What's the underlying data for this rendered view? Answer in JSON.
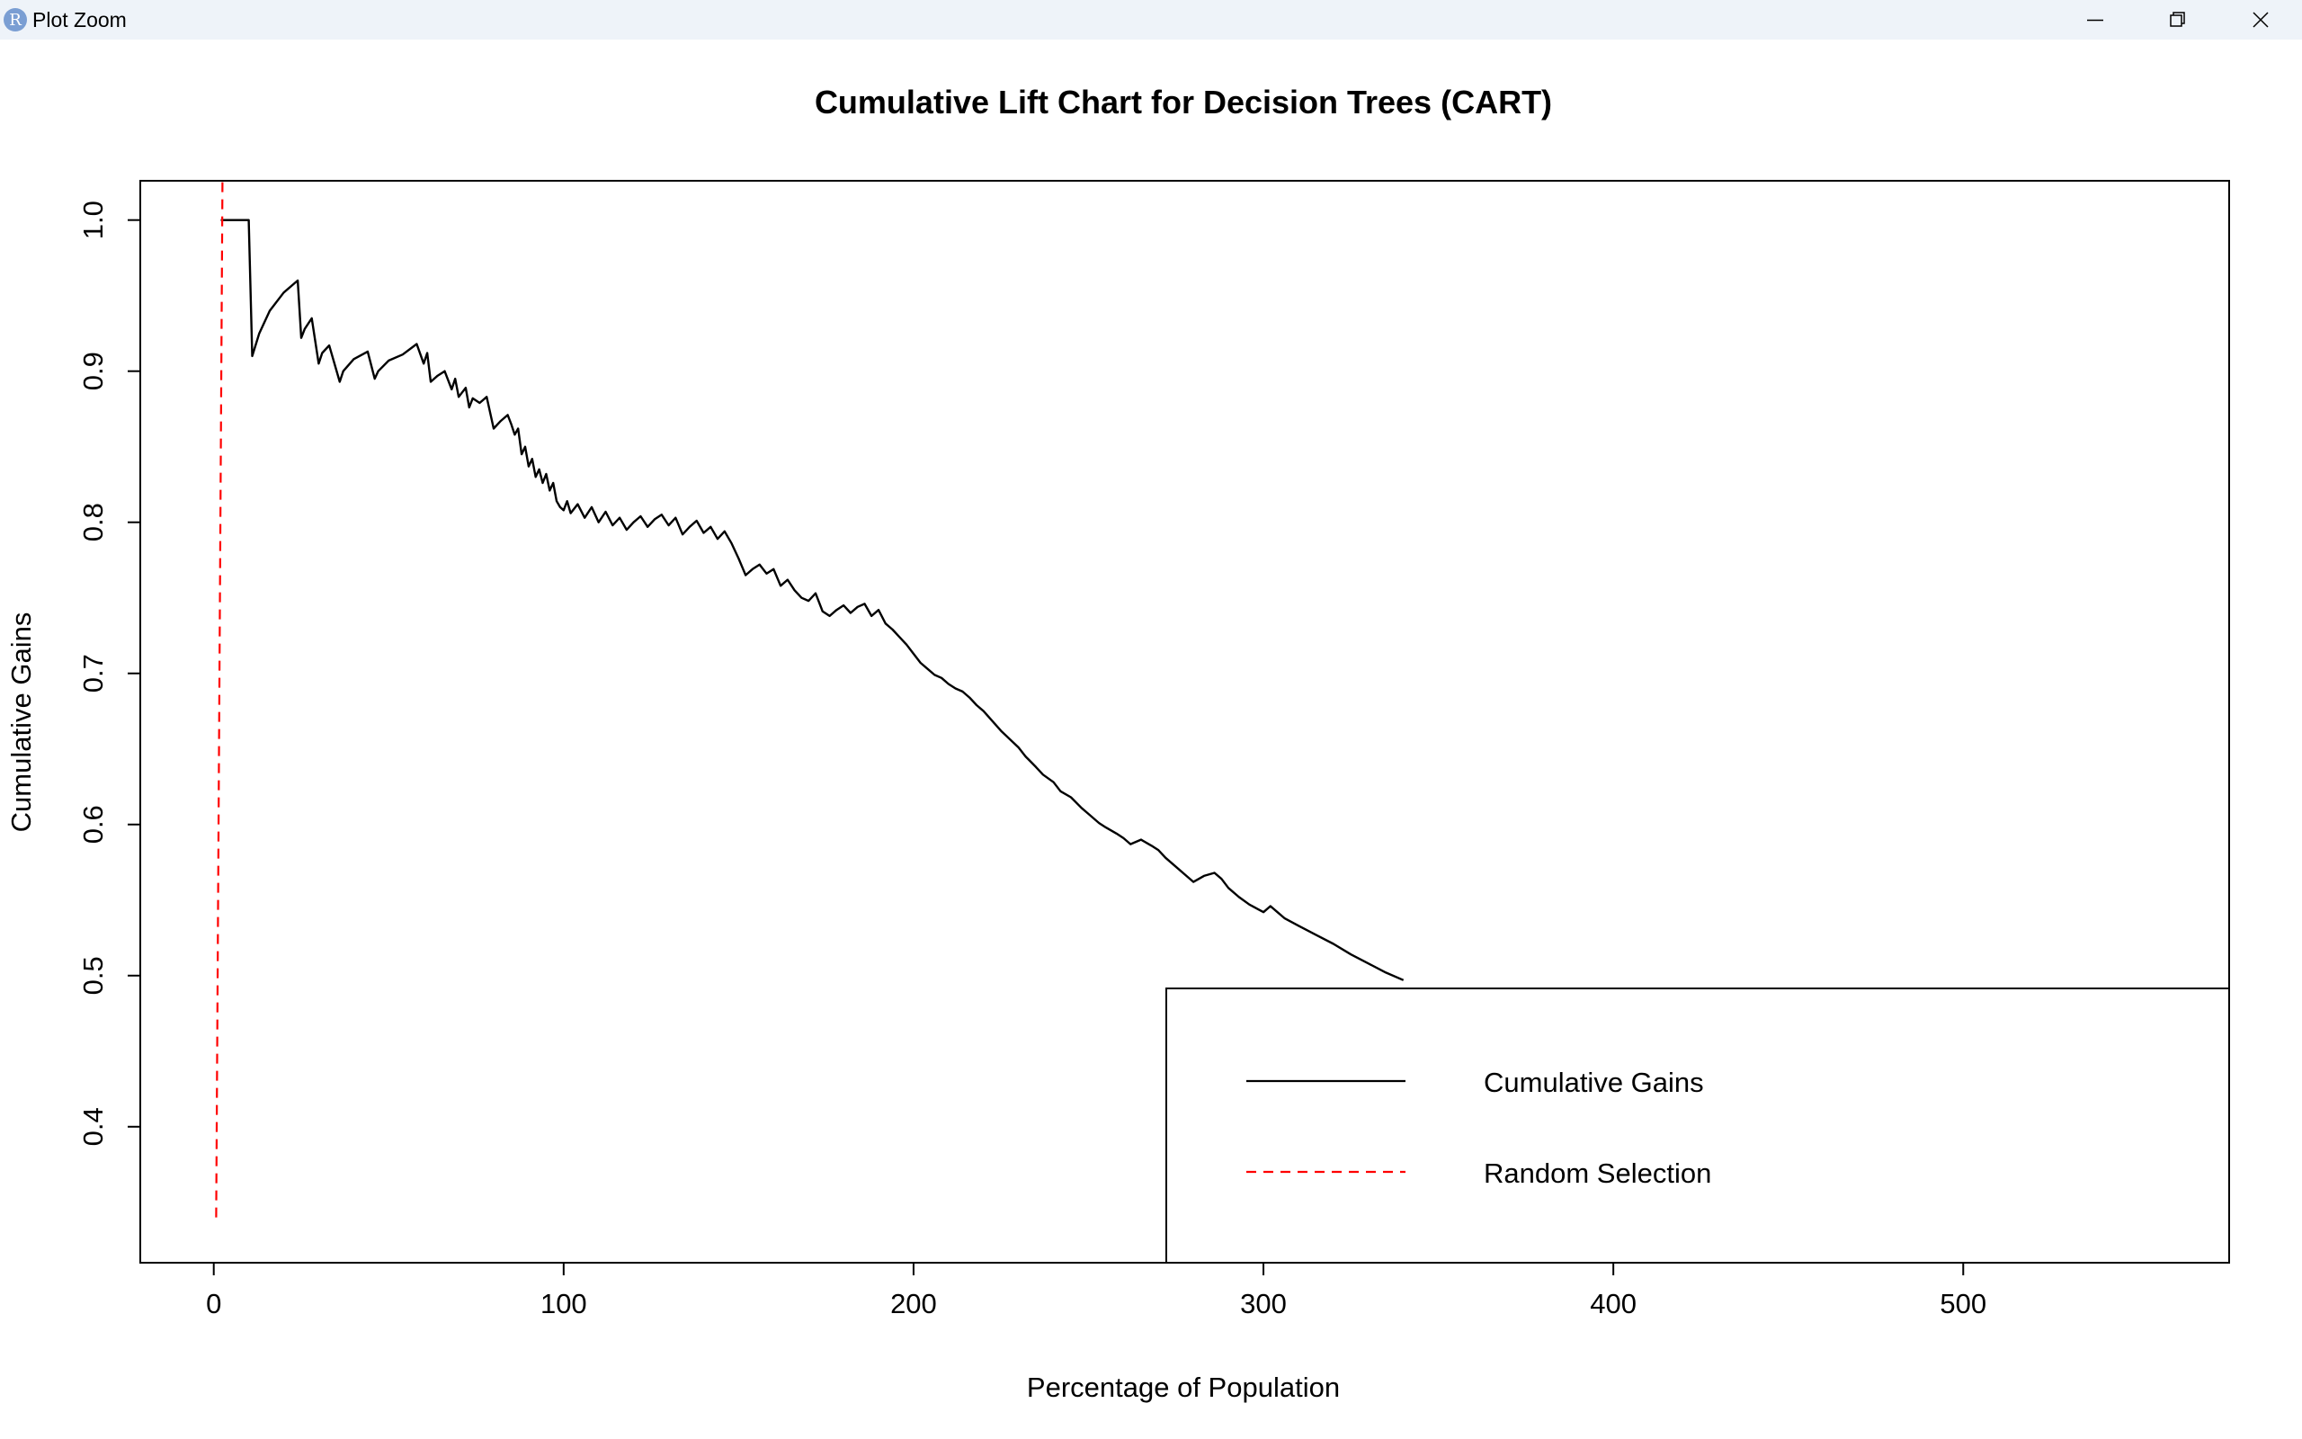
{
  "window": {
    "app_icon": "R",
    "title": "Plot Zoom",
    "controls": [
      "minimize-icon",
      "restore-icon",
      "close-icon"
    ]
  },
  "chart_data": {
    "type": "line",
    "title": "Cumulative Lift Chart for Decision Trees (CART)",
    "xlabel": "Percentage of Population",
    "ylabel": "Cumulative Gains",
    "xlim": [
      -21,
      576
    ],
    "ylim": [
      0.31,
      1.026
    ],
    "x_ticks": [
      0,
      100,
      200,
      300,
      400,
      500
    ],
    "x_tick_labels": [
      "0",
      "100",
      "200",
      "300",
      "400",
      "500"
    ],
    "y_ticks": [
      0.4,
      0.5,
      0.6,
      0.7,
      0.8,
      0.9,
      1.0
    ],
    "y_tick_labels": [
      "0.4",
      "0.5",
      "0.6",
      "0.7",
      "0.8",
      "0.9",
      "1.0"
    ],
    "grid": false,
    "legend": {
      "position": "bottom-right",
      "entries": [
        "Cumulative Gains",
        "Random Selection"
      ]
    },
    "series": [
      {
        "name": "Cumulative Gains",
        "color": "#000000",
        "style": "solid",
        "x": [
          2,
          10,
          11,
          13,
          16,
          20,
          24,
          25,
          26,
          28,
          30,
          31,
          33,
          36,
          37,
          40,
          44,
          46,
          47,
          50,
          54,
          58,
          60,
          61,
          62,
          64,
          66,
          68,
          69,
          70,
          72,
          73,
          74,
          76,
          78,
          80,
          82,
          84,
          85,
          86,
          87,
          88,
          89,
          90,
          91,
          92,
          93,
          94,
          95,
          96,
          97,
          98,
          99,
          100,
          101,
          102,
          104,
          106,
          108,
          110,
          112,
          114,
          116,
          118,
          120,
          122,
          124,
          126,
          128,
          130,
          132,
          134,
          136,
          138,
          140,
          142,
          144,
          146,
          148,
          150,
          152,
          154,
          156,
          158,
          160,
          162,
          164,
          166,
          168,
          170,
          172,
          174,
          176,
          178,
          180,
          182,
          184,
          186,
          188,
          190,
          192,
          194,
          196,
          198,
          200,
          202,
          204,
          206,
          208,
          210,
          212,
          214,
          216,
          218,
          220,
          225,
          230,
          232,
          235,
          237,
          240,
          242,
          245,
          248,
          250,
          253,
          255,
          258,
          260,
          262,
          265,
          268,
          270,
          272,
          275,
          278,
          280,
          283,
          286,
          288,
          290,
          293,
          296,
          300,
          302,
          304,
          306,
          310,
          315,
          320,
          325,
          330,
          335,
          340
        ],
        "y": [
          1.0,
          1.0,
          0.91,
          0.925,
          0.94,
          0.952,
          0.96,
          0.922,
          0.928,
          0.935,
          0.905,
          0.912,
          0.917,
          0.893,
          0.9,
          0.908,
          0.913,
          0.895,
          0.9,
          0.907,
          0.911,
          0.918,
          0.905,
          0.912,
          0.893,
          0.897,
          0.9,
          0.888,
          0.895,
          0.883,
          0.889,
          0.876,
          0.882,
          0.879,
          0.883,
          0.862,
          0.867,
          0.871,
          0.865,
          0.858,
          0.862,
          0.845,
          0.85,
          0.837,
          0.842,
          0.83,
          0.835,
          0.826,
          0.832,
          0.821,
          0.826,
          0.814,
          0.81,
          0.808,
          0.814,
          0.806,
          0.812,
          0.803,
          0.81,
          0.8,
          0.807,
          0.798,
          0.803,
          0.795,
          0.8,
          0.804,
          0.797,
          0.802,
          0.805,
          0.798,
          0.803,
          0.792,
          0.797,
          0.801,
          0.793,
          0.797,
          0.789,
          0.794,
          0.786,
          0.776,
          0.765,
          0.769,
          0.772,
          0.766,
          0.769,
          0.758,
          0.762,
          0.755,
          0.75,
          0.748,
          0.753,
          0.741,
          0.738,
          0.742,
          0.745,
          0.74,
          0.744,
          0.746,
          0.738,
          0.742,
          0.733,
          0.729,
          0.724,
          0.719,
          0.713,
          0.707,
          0.703,
          0.699,
          0.697,
          0.693,
          0.69,
          0.688,
          0.684,
          0.679,
          0.675,
          0.662,
          0.651,
          0.645,
          0.638,
          0.633,
          0.628,
          0.622,
          0.618,
          0.611,
          0.607,
          0.601,
          0.598,
          0.594,
          0.591,
          0.587,
          0.59,
          0.586,
          0.583,
          0.578,
          0.572,
          0.566,
          0.562,
          0.566,
          0.568,
          0.564,
          0.558,
          0.552,
          0.547,
          0.542,
          0.546,
          0.542,
          0.538,
          0.533,
          0.527,
          0.521,
          0.514,
          0.508,
          0.502,
          0.497
        ]
      },
      {
        "name": "Random Selection",
        "color": "#ff0000",
        "style": "dashed",
        "x": [
          0.7,
          2.5
        ],
        "y": [
          0.34,
          1.026
        ]
      }
    ]
  }
}
